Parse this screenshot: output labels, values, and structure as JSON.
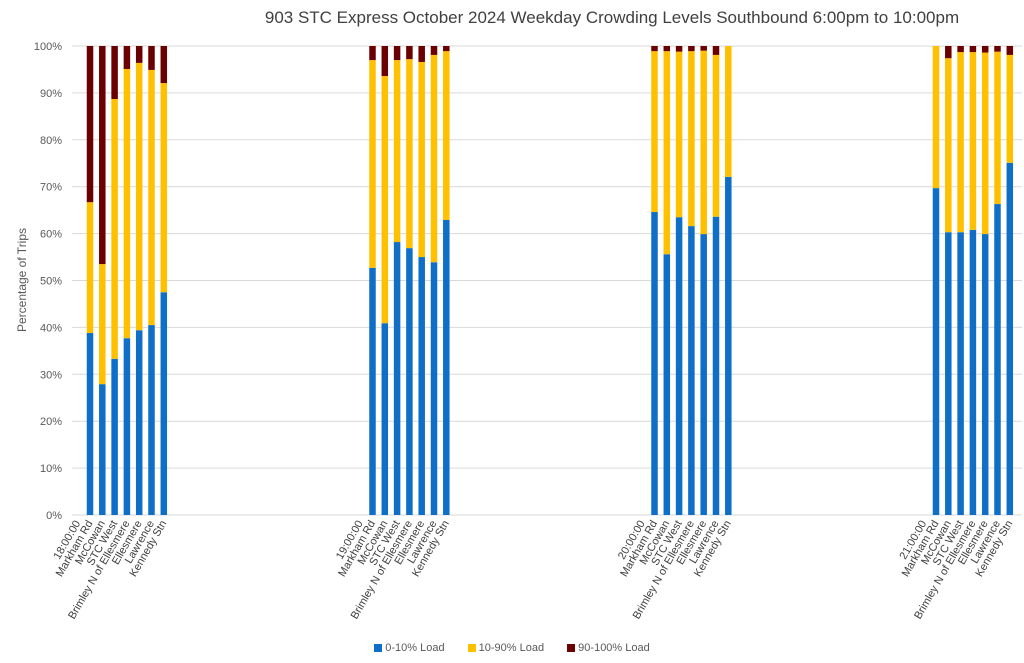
{
  "chart_data": {
    "type": "bar",
    "stacked": true,
    "title": "903 STC Express October 2024  Weekday Crowding Levels Southbound 6:00pm to 10:00pm",
    "xlabel": "",
    "ylabel": "Percentage of Trips",
    "ylim": [
      0,
      100
    ],
    "y_ticks": [
      "0%",
      "10%",
      "20%",
      "30%",
      "40%",
      "50%",
      "60%",
      "70%",
      "80%",
      "90%",
      "100%"
    ],
    "grid": true,
    "legend_position": "bottom",
    "stops": [
      "Markham Rd",
      "McCowan",
      "STC West",
      "Brimley N of Ellesmere",
      "Ellesmere",
      "Lawrence",
      "Kennedy Stn"
    ],
    "groups": [
      {
        "time": "18:00:00",
        "series": [
          {
            "name": "0-10% Load",
            "values": [
              38.8,
              27.9,
              33.3,
              37.7,
              39.4,
              40.5,
              47.5
            ]
          },
          {
            "name": "10-90% Load",
            "values": [
              27.9,
              25.6,
              55.4,
              57.4,
              57.0,
              54.4,
              44.6
            ]
          },
          {
            "name": "90-100% Load",
            "values": [
              33.3,
              46.5,
              11.3,
              4.9,
              3.6,
              5.1,
              7.9
            ]
          }
        ]
      },
      {
        "time": "19:00:00",
        "series": [
          {
            "name": "0-10% Load",
            "values": [
              52.7,
              40.9,
              58.2,
              56.9,
              55.0,
              53.9,
              62.9
            ]
          },
          {
            "name": "10-90% Load",
            "values": [
              44.3,
              52.7,
              38.8,
              40.3,
              41.6,
              44.2,
              36.0
            ]
          },
          {
            "name": "90-100% Load",
            "values": [
              3.0,
              6.4,
              3.0,
              2.8,
              3.4,
              1.9,
              1.1
            ]
          }
        ]
      },
      {
        "time": "20:00:00",
        "series": [
          {
            "name": "0-10% Load",
            "values": [
              64.6,
              55.6,
              63.5,
              61.6,
              59.9,
              63.6,
              72.1
            ]
          },
          {
            "name": "10-90% Load",
            "values": [
              34.3,
              43.3,
              35.3,
              37.3,
              39.1,
              34.5,
              27.9
            ]
          },
          {
            "name": "90-100% Load",
            "values": [
              1.1,
              1.1,
              1.2,
              1.1,
              1.0,
              1.9,
              0.0
            ]
          }
        ]
      },
      {
        "time": "21:00:00",
        "series": [
          {
            "name": "0-10% Load",
            "values": [
              69.7,
              60.3,
              60.3,
              60.8,
              59.9,
              66.3,
              75.1
            ]
          },
          {
            "name": "10-90% Load",
            "values": [
              30.3,
              37.1,
              38.4,
              37.9,
              38.7,
              32.5,
              23.0
            ]
          },
          {
            "name": "90-100% Load",
            "values": [
              0.0,
              2.6,
              1.3,
              1.3,
              1.4,
              1.2,
              1.9
            ]
          }
        ]
      }
    ],
    "legend": [
      {
        "name": "0-10% Load",
        "color": "#0f6fc6"
      },
      {
        "name": "10-90% Load",
        "color": "#ffc000"
      },
      {
        "name": "90-100% Load",
        "color": "#6b0000"
      }
    ]
  }
}
